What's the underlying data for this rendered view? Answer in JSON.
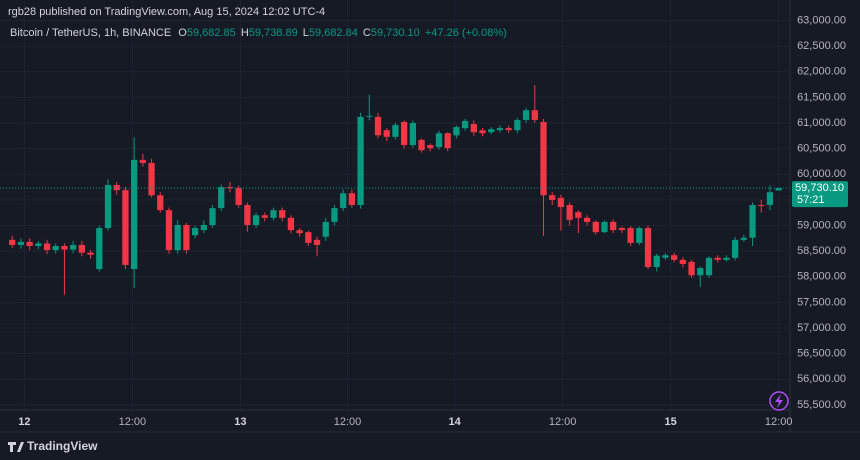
{
  "header": {
    "published": "rgb28 published on TradingView.com, Aug 15, 2024 12:02 UTC-4"
  },
  "footer": {
    "brand": "TradingView"
  },
  "chart_data": {
    "type": "candlestick",
    "title": "Bitcoin / TetherUS, 1h, BINANCE",
    "legend": {
      "o_label": "O",
      "o": "59,682.85",
      "h_label": "H",
      "h": "59,738.89",
      "l_label": "L",
      "l": "59,682.84",
      "c_label": "C",
      "c": "59,730.10",
      "change": "+47.26 (+0.08%)"
    },
    "last_price_label": "59,730.10",
    "countdown": "57:21",
    "up_color": "#089981",
    "down_color": "#f23645",
    "grid": true,
    "open": [
      58720,
      58620,
      58680,
      58600,
      58650,
      58520,
      58600,
      58530,
      58620,
      58470,
      58150,
      58950,
      59790,
      59690,
      58150,
      60280,
      60220,
      59590,
      59300,
      58520,
      59010,
      58810,
      58910,
      59010,
      59340,
      59750,
      59730,
      59400,
      59010,
      59200,
      59150,
      59300,
      59150,
      58910,
      58870,
      58720,
      58780,
      59070,
      59340,
      59630,
      59400,
      61120,
      61120,
      60860,
      60730,
      61020,
      60570,
      60670,
      60570,
      60530,
      60800,
      60760,
      60900,
      60980,
      60860,
      60820,
      60860,
      60900,
      60860,
      61060,
      61250,
      61020,
      59590,
      59540,
      59400,
      59260,
      59150,
      59070,
      58870,
      59070,
      58950,
      58950,
      58660,
      58950,
      58190,
      58370,
      58420,
      58330,
      58290,
      58030,
      58030,
      58370,
      58330,
      58370,
      58720,
      58760,
      59400,
      59400,
      59682.85
    ],
    "high": [
      58800,
      58750,
      58750,
      58700,
      58720,
      58650,
      58650,
      58700,
      58700,
      58520,
      59000,
      59900,
      59850,
      59750,
      60720,
      60400,
      60300,
      59650,
      59350,
      59100,
      59050,
      59000,
      59100,
      59400,
      59800,
      59850,
      59780,
      59450,
      59250,
      59250,
      59350,
      59350,
      59200,
      58950,
      58900,
      58780,
      59150,
      59400,
      59700,
      59700,
      61200,
      61550,
      61200,
      60900,
      61000,
      61050,
      61050,
      60700,
      60600,
      60850,
      60820,
      60950,
      61080,
      61050,
      60900,
      60920,
      60950,
      60950,
      61100,
      61300,
      61740,
      61080,
      59650,
      59600,
      59450,
      59300,
      59200,
      59100,
      59100,
      59120,
      58980,
      58990,
      58980,
      59000,
      58450,
      58460,
      58470,
      58380,
      58330,
      58200,
      58400,
      58420,
      58420,
      58780,
      58820,
      59450,
      59500,
      59780,
      59738.89
    ],
    "low": [
      58560,
      58550,
      58520,
      58540,
      58440,
      58450,
      57650,
      58460,
      58400,
      58350,
      58100,
      58900,
      59600,
      58150,
      57780,
      60150,
      59550,
      59250,
      58450,
      58450,
      58450,
      58750,
      58850,
      58950,
      59280,
      59650,
      59350,
      58880,
      58950,
      59080,
      59100,
      59080,
      58850,
      58780,
      58600,
      58400,
      58700,
      59000,
      59280,
      59350,
      59330,
      61050,
      60700,
      60650,
      60680,
      60500,
      60520,
      60420,
      60450,
      60480,
      60450,
      60700,
      60850,
      60750,
      60740,
      60780,
      60820,
      60800,
      60800,
      61000,
      61000,
      58800,
      59400,
      58900,
      59000,
      58850,
      59000,
      58820,
      58850,
      58850,
      58850,
      58600,
      58620,
      58150,
      58100,
      58330,
      58280,
      58180,
      57980,
      57800,
      57980,
      58280,
      58300,
      58320,
      58680,
      58600,
      59250,
      59300,
      59682.84
    ],
    "close": [
      58620,
      58680,
      58600,
      58650,
      58520,
      58600,
      58530,
      58620,
      58470,
      58430,
      58950,
      59790,
      59690,
      58230,
      60280,
      60220,
      59590,
      59300,
      58520,
      59010,
      58520,
      58950,
      59010,
      59340,
      59750,
      59730,
      59400,
      59010,
      59200,
      59150,
      59300,
      59150,
      58910,
      58850,
      58660,
      58620,
      59070,
      59340,
      59630,
      59400,
      61120,
      61140,
      60760,
      60730,
      60960,
      60570,
      61000,
      60470,
      60510,
      60800,
      60510,
      60920,
      61040,
      60820,
      60800,
      60880,
      60900,
      60860,
      61060,
      61250,
      61060,
      59590,
      59500,
      59360,
      59110,
      59150,
      59070,
      58870,
      59070,
      58910,
      58910,
      58660,
      58950,
      58190,
      58410,
      58420,
      58330,
      58250,
      58030,
      58170,
      58370,
      58330,
      58370,
      58720,
      58760,
      59400,
      59380,
      59650,
      59730.1
    ],
    "xlim": [
      -1.4,
      89.3
    ],
    "xticks": [
      {
        "value": 1.4,
        "label": "12"
      },
      {
        "value": 13.8,
        "label": "12:00"
      },
      {
        "value": 26.2,
        "label": "13"
      },
      {
        "value": 38.5,
        "label": "12:00"
      },
      {
        "value": 50.8,
        "label": "14"
      },
      {
        "value": 63.2,
        "label": "12:00"
      },
      {
        "value": 75.6,
        "label": "15"
      },
      {
        "value": 88,
        "label": "12:00"
      }
    ],
    "ylim": [
      55400,
      63400
    ],
    "yticks": [
      {
        "value": 55500,
        "label": "55,500.00"
      },
      {
        "value": 56000,
        "label": "56,000.00"
      },
      {
        "value": 56500,
        "label": "56,500.00"
      },
      {
        "value": 57000,
        "label": "57,000.00"
      },
      {
        "value": 57500,
        "label": "57,500.00"
      },
      {
        "value": 58000,
        "label": "58,000.00"
      },
      {
        "value": 58500,
        "label": "58,500.00"
      },
      {
        "value": 59000,
        "label": "59,000.00"
      },
      {
        "value": 59500,
        "label": "59,500.00"
      },
      {
        "value": 60000,
        "label": "60,000.00"
      },
      {
        "value": 60500,
        "label": "60,500.00"
      },
      {
        "value": 61000,
        "label": "61,000.00"
      },
      {
        "value": 61500,
        "label": "61,500.00"
      },
      {
        "value": 62000,
        "label": "62,000.00"
      },
      {
        "value": 62500,
        "label": "62,500.00"
      },
      {
        "value": 63000,
        "label": "63,000.00"
      }
    ]
  }
}
